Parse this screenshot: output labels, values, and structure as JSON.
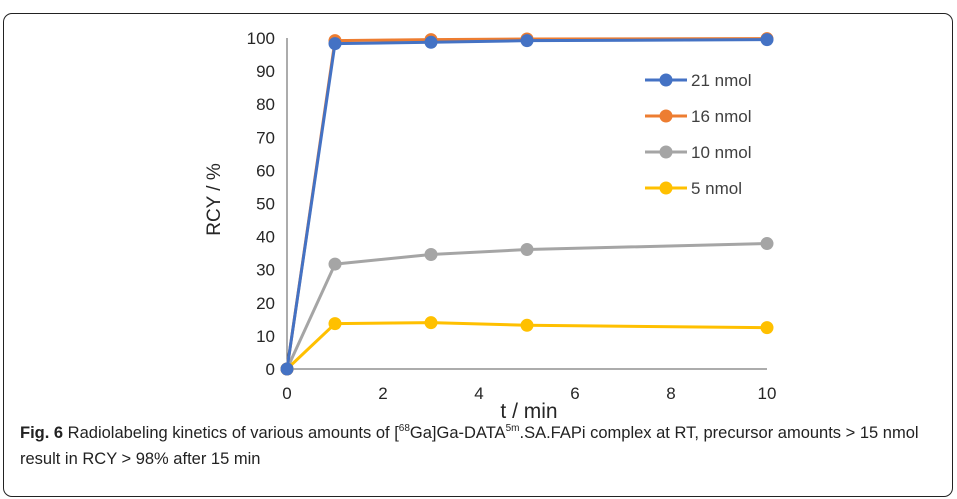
{
  "chart_data": {
    "type": "line",
    "xlabel": "t / min",
    "ylabel": "RCY / %",
    "xlim": [
      0,
      10
    ],
    "ylim": [
      0,
      100
    ],
    "x_ticks": [
      "0",
      "2",
      "4",
      "6",
      "8",
      "10"
    ],
    "y_ticks": [
      "0",
      "10",
      "20",
      "30",
      "40",
      "50",
      "60",
      "70",
      "80",
      "90",
      "100"
    ],
    "grid": false,
    "legend_placement": "right",
    "series": [
      {
        "name": "21 nmol",
        "color": "#4472C4",
        "x": [
          0,
          1,
          3,
          5,
          10
        ],
        "y": [
          0,
          98.3,
          98.7,
          99.2,
          99.5
        ]
      },
      {
        "name": "16 nmol",
        "color": "#ED7D31",
        "x": [
          0,
          1,
          3,
          5,
          10
        ],
        "y": [
          0,
          99.2,
          99.5,
          99.7,
          99.8
        ]
      },
      {
        "name": "10 nmol",
        "color": "#A5A5A5",
        "x": [
          0,
          1,
          3,
          5,
          10
        ],
        "y": [
          0,
          31.7,
          34.6,
          36.1,
          37.9
        ]
      },
      {
        "name": "5 nmol",
        "color": "#FFC000",
        "x": [
          0,
          1,
          3,
          5,
          10
        ],
        "y": [
          0,
          13.7,
          14.0,
          13.2,
          12.5
        ]
      }
    ]
  },
  "caption": {
    "label": "Fig. 6",
    "text_1": " Radiolabeling kinetics of various amounts of [",
    "sup_1": "68",
    "text_2": "Ga]Ga-DATA",
    "sup_2": "5m",
    "text_3": ".SA.FAPi complex at RT, precursor amounts > 15 nmol result in RCY > 98% after 15 min"
  }
}
